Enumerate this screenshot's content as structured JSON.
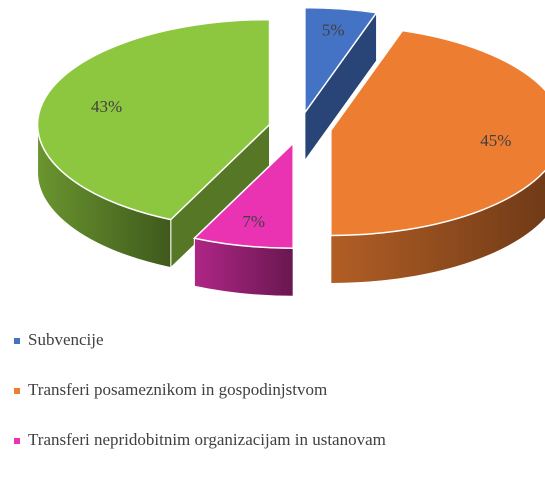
{
  "chart_data": {
    "type": "pie3d",
    "categories": [
      "Subvencije",
      "Transferi posameznikom in gospodinjstvom",
      "Transferi nepridobitnim organizacijam in ustanovam",
      null
    ],
    "values": [
      5,
      45,
      7,
      43
    ],
    "value_labels": [
      "5%",
      "45%",
      "7%",
      "43%"
    ],
    "colors": [
      "#4472c4",
      "#ed7d31",
      "#e933b2",
      "#8dc63f"
    ]
  }
}
